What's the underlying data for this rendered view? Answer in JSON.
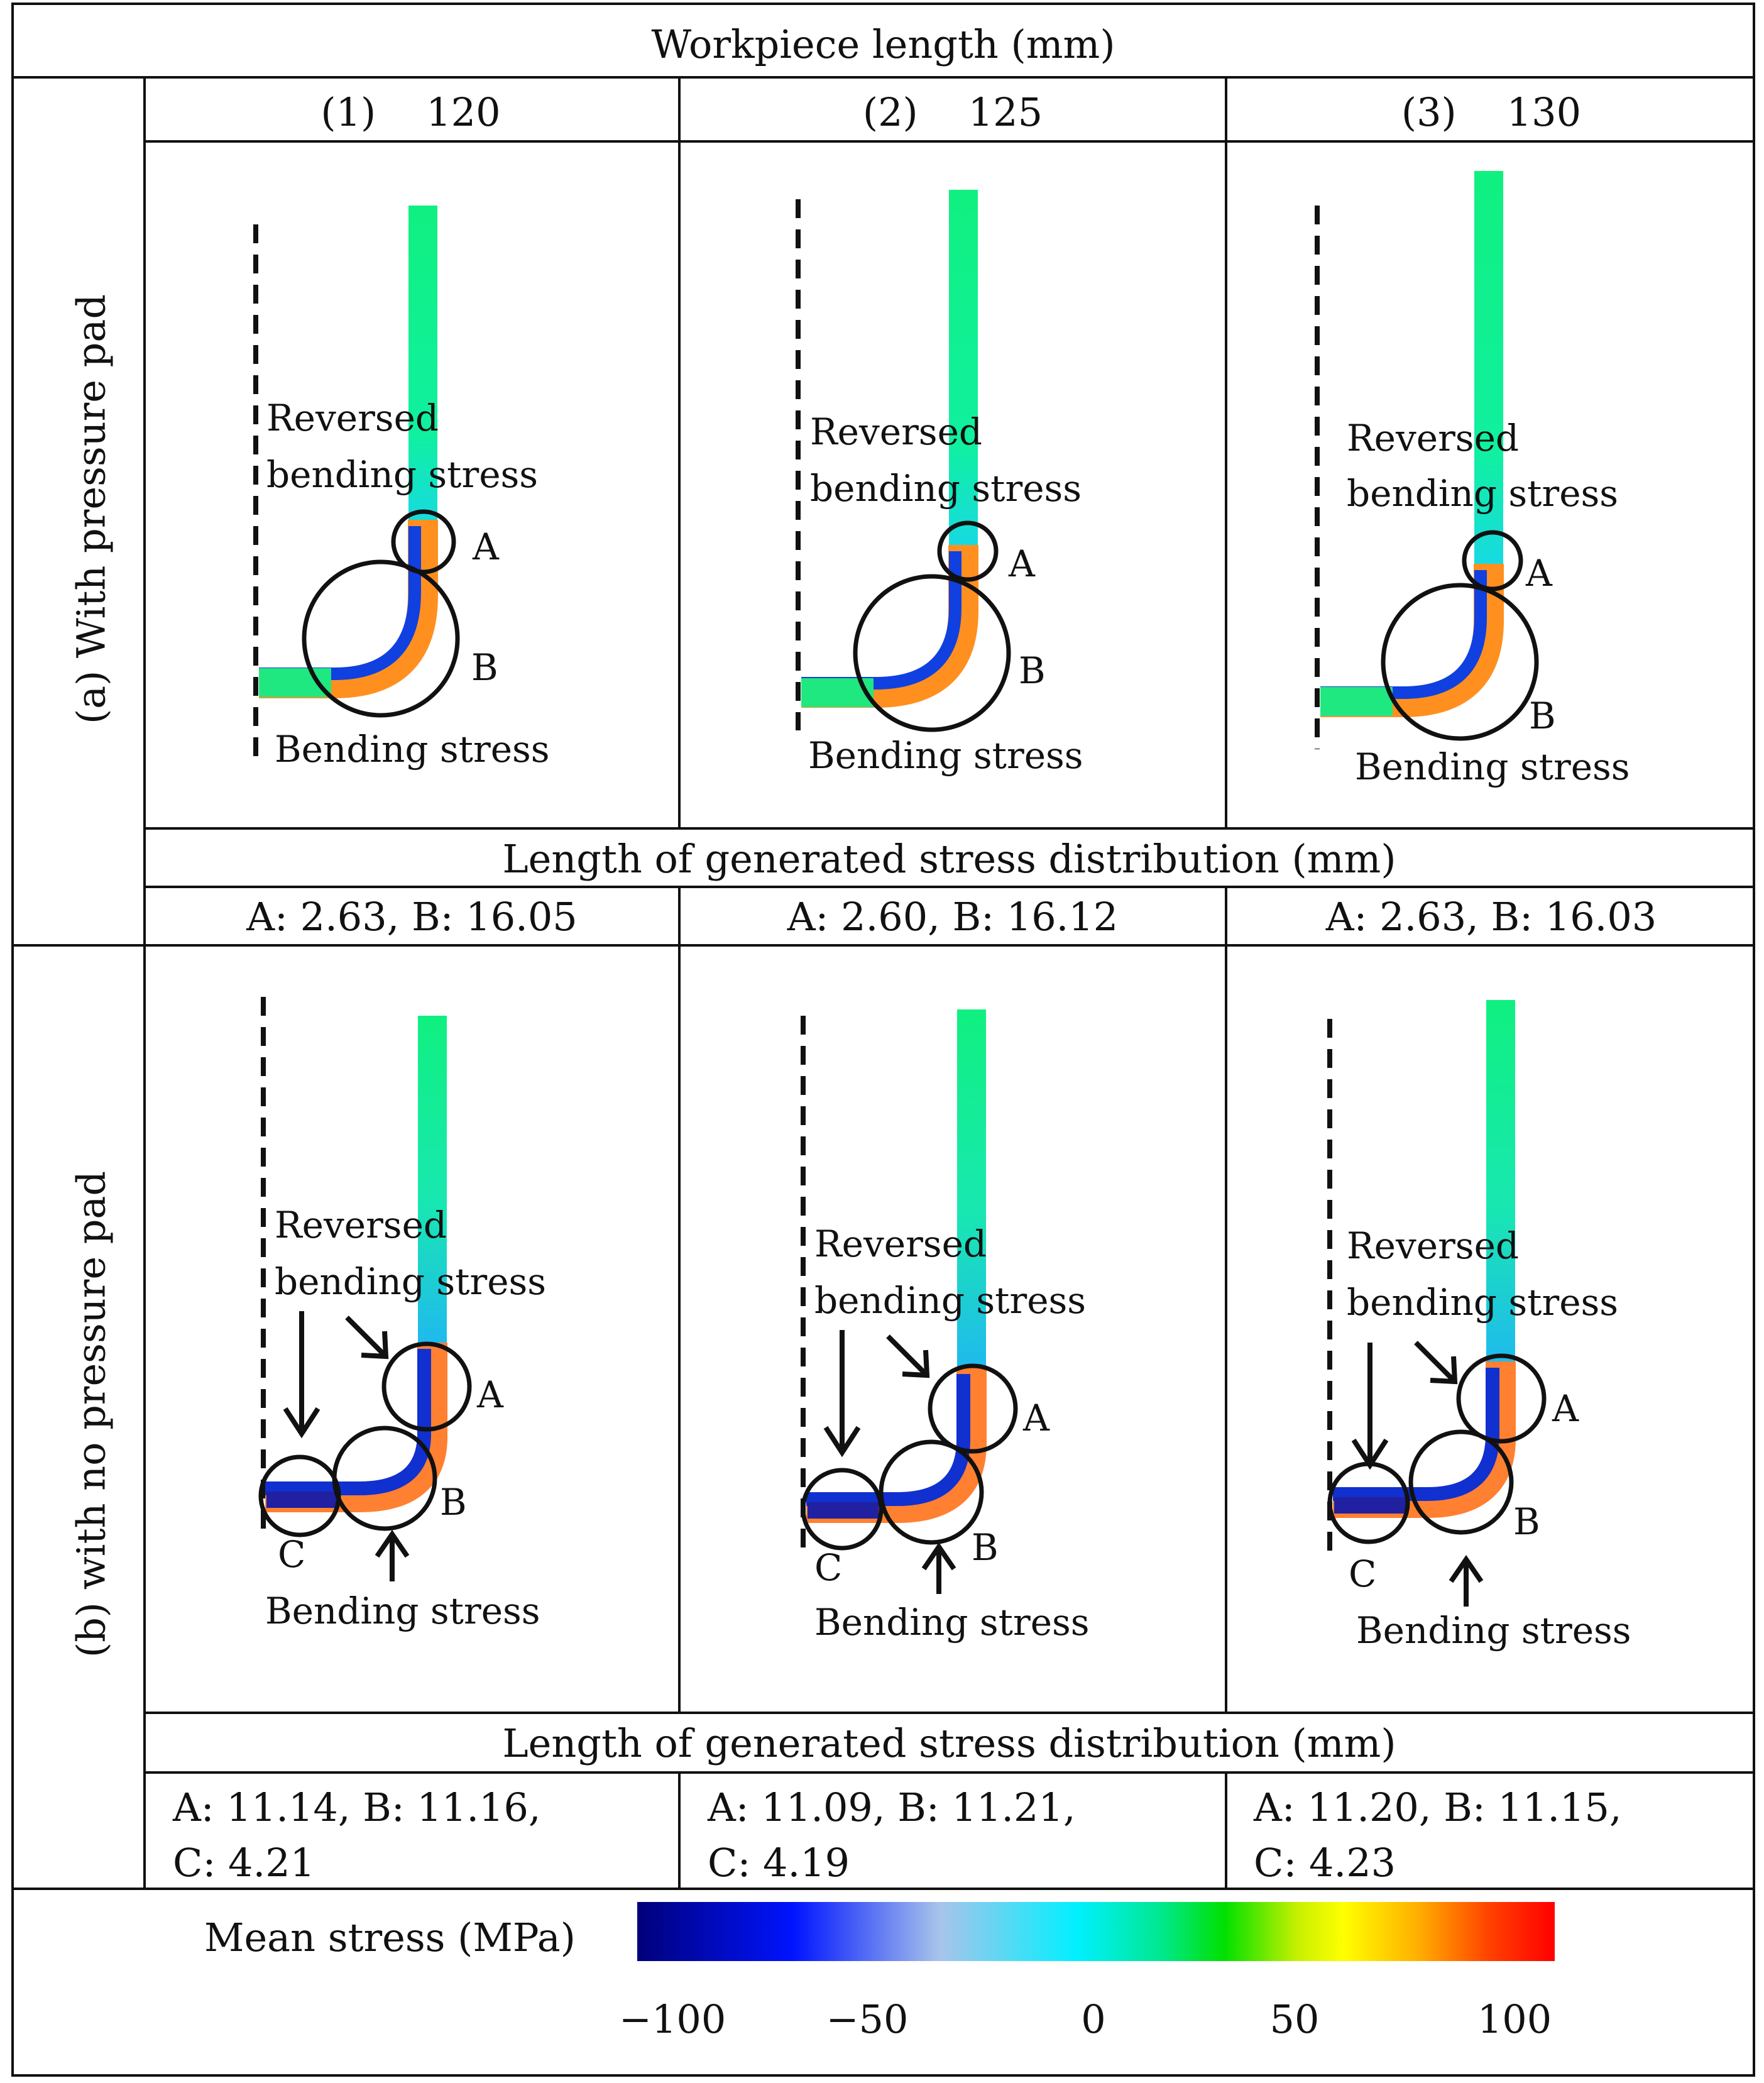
{
  "header": {
    "title": "Workpiece length (mm)"
  },
  "columns": [
    {
      "index": "(1)",
      "length": "120"
    },
    {
      "index": "(2)",
      "length": "125"
    },
    {
      "index": "(3)",
      "length": "130"
    }
  ],
  "rows": {
    "with_pad": {
      "label": "(a) With pressure pad",
      "annotations": {
        "reversed_line1": "Reversed",
        "reversed_line2": "bending stress",
        "bending": "Bending stress",
        "A": "A",
        "B": "B"
      },
      "distribution_title": "Length of generated stress distribution (mm)",
      "values": [
        "A: 2.63,  B: 16.05",
        "A: 2.60,  B: 16.12",
        "A: 2.63,  B: 16.03"
      ]
    },
    "no_pad": {
      "label": "(b) with no pressure pad",
      "annotations": {
        "reversed_line1": "Reversed",
        "reversed_line2": "bending stress",
        "bending": "Bending stress",
        "A": "A",
        "B": "B",
        "C": "C"
      },
      "distribution_title": "Length of generated stress distribution (mm)",
      "values": [
        {
          "line1": "A:  11.14,  B:  11.16,",
          "line2": "C:  4.21"
        },
        {
          "line1": "A:  11.09,  B:  11.21,",
          "line2": "C:  4.19"
        },
        {
          "line1": "A:  11.20,  B:  11.15,",
          "line2": "C:  4.23"
        }
      ]
    }
  },
  "legend": {
    "label": "Mean stress (MPa)",
    "ticks": [
      "−100",
      "−50",
      "0",
      "50",
      "100"
    ]
  }
}
